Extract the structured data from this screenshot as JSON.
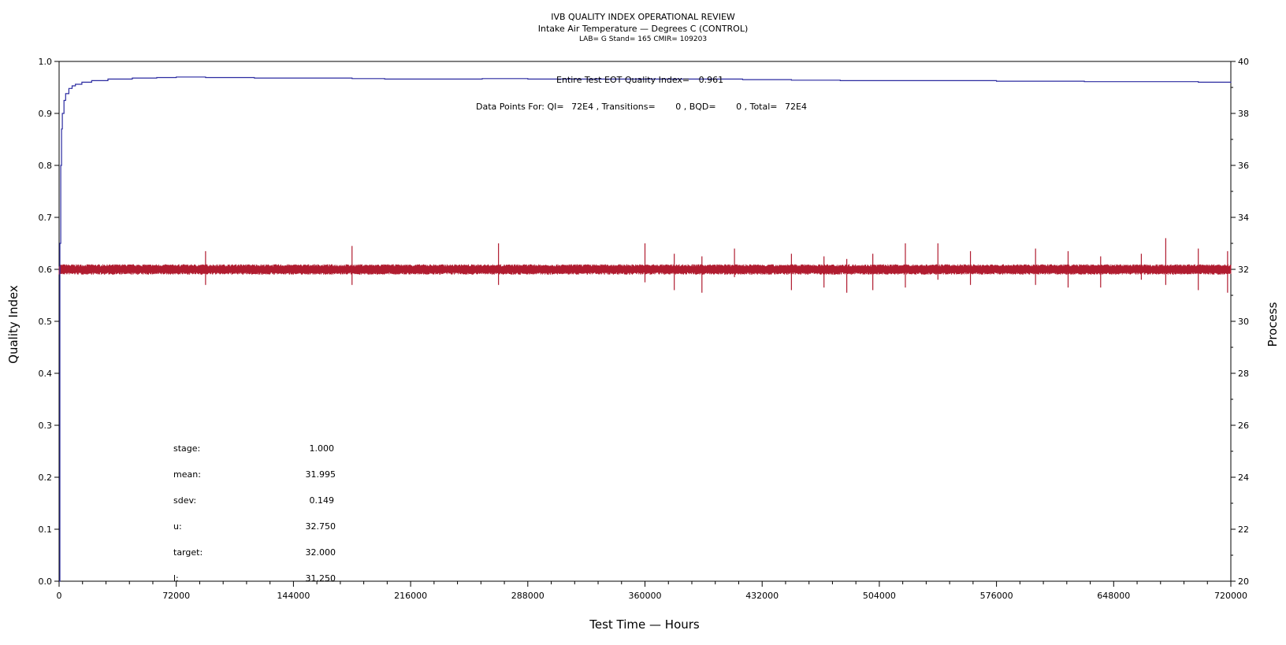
{
  "chart_data": {
    "type": "line",
    "title": "IVB QUALITY INDEX OPERATIONAL REVIEW",
    "subtitle": "Intake Air Temperature — Degrees C (CONTROL)",
    "subtitle2": "LAB= G Stand= 165 CMIR= 109203",
    "xlabel": "Test Time — Hours",
    "ylabel": "Quality Index",
    "y2label": "Process",
    "xlim": [
      0,
      720000
    ],
    "ylim": [
      0.0,
      1.0
    ],
    "y2lim": [
      20,
      40
    ],
    "x_ticks": [
      0,
      72000,
      144000,
      216000,
      288000,
      360000,
      432000,
      504000,
      576000,
      648000,
      720000
    ],
    "y_ticks": [
      "0.0",
      "0.1",
      "0.2",
      "0.3",
      "0.4",
      "0.5",
      "0.6",
      "0.7",
      "0.8",
      "0.9",
      "1.0"
    ],
    "y2_ticks": [
      "20",
      "22",
      "24",
      "26",
      "28",
      "30",
      "32",
      "34",
      "36",
      "38",
      "40"
    ],
    "grid": false,
    "annotations": {
      "eot_label": "Entire Test EOT Quality Index=",
      "eot_value": "0.961",
      "points_label": "Data Points For: QI=",
      "points_qi": "72E4",
      "points_transitions_label": ", Transitions=",
      "points_transitions": "0",
      "points_bqd_label": ", BQD=",
      "points_bqd": "0",
      "points_total_label": ", Total=",
      "points_total": "72E4"
    },
    "stats": [
      {
        "label": "stage:",
        "value": "1.000"
      },
      {
        "label": "mean:",
        "value": "31.995"
      },
      {
        "label": "sdev:",
        "value": "0.149"
      },
      {
        "label": "u:",
        "value": "32.750"
      },
      {
        "label": "target:",
        "value": "32.000"
      },
      {
        "label": "l:",
        "value": "31.250"
      }
    ],
    "series": [
      {
        "axis": "left",
        "color": "#2a2aa0",
        "x": [
          0,
          500,
          1000,
          1500,
          2000,
          3000,
          4000,
          6000,
          8000,
          10000,
          14000,
          20000,
          30000,
          45000,
          60000,
          72000,
          80000,
          90000,
          120000,
          160000,
          180000,
          200000,
          216000,
          240000,
          260000,
          288000,
          320000,
          350000,
          380000,
          420000,
          450000,
          480000,
          510000,
          540000,
          576000,
          610000,
          630000,
          650000,
          690000,
          700000,
          720000
        ],
        "y": [
          0.0,
          0.65,
          0.8,
          0.87,
          0.9,
          0.925,
          0.938,
          0.948,
          0.953,
          0.956,
          0.96,
          0.963,
          0.966,
          0.968,
          0.969,
          0.97,
          0.97,
          0.969,
          0.968,
          0.968,
          0.967,
          0.966,
          0.966,
          0.966,
          0.967,
          0.966,
          0.966,
          0.966,
          0.966,
          0.965,
          0.964,
          0.963,
          0.963,
          0.963,
          0.962,
          0.962,
          0.961,
          0.961,
          0.961,
          0.96,
          0.961
        ]
      },
      {
        "axis": "right",
        "color": "#b01c30",
        "mean": 31.995,
        "band": 0.2,
        "spikes": [
          {
            "x": 90000,
            "high": 32.7,
            "low": 31.4
          },
          {
            "x": 180000,
            "high": 32.9,
            "low": 31.4
          },
          {
            "x": 270000,
            "high": 33.0,
            "low": 31.4
          },
          {
            "x": 360000,
            "high": 33.0,
            "low": 31.5
          },
          {
            "x": 378000,
            "high": 32.6,
            "low": 31.2
          },
          {
            "x": 395000,
            "high": 32.5,
            "low": 31.1
          },
          {
            "x": 415000,
            "high": 32.8,
            "low": 31.7
          },
          {
            "x": 450000,
            "high": 32.6,
            "low": 31.2
          },
          {
            "x": 470000,
            "high": 32.5,
            "low": 31.3
          },
          {
            "x": 484000,
            "high": 32.4,
            "low": 31.1
          },
          {
            "x": 500000,
            "high": 32.6,
            "low": 31.2
          },
          {
            "x": 520000,
            "high": 33.0,
            "low": 31.3
          },
          {
            "x": 540000,
            "high": 33.0,
            "low": 31.6
          },
          {
            "x": 560000,
            "high": 32.7,
            "low": 31.4
          },
          {
            "x": 600000,
            "high": 32.8,
            "low": 31.4
          },
          {
            "x": 620000,
            "high": 32.7,
            "low": 31.3
          },
          {
            "x": 640000,
            "high": 32.5,
            "low": 31.3
          },
          {
            "x": 665000,
            "high": 32.6,
            "low": 31.6
          },
          {
            "x": 680000,
            "high": 33.2,
            "low": 31.4
          },
          {
            "x": 700000,
            "high": 32.8,
            "low": 31.2
          },
          {
            "x": 718000,
            "high": 32.7,
            "low": 31.1
          }
        ]
      }
    ]
  }
}
